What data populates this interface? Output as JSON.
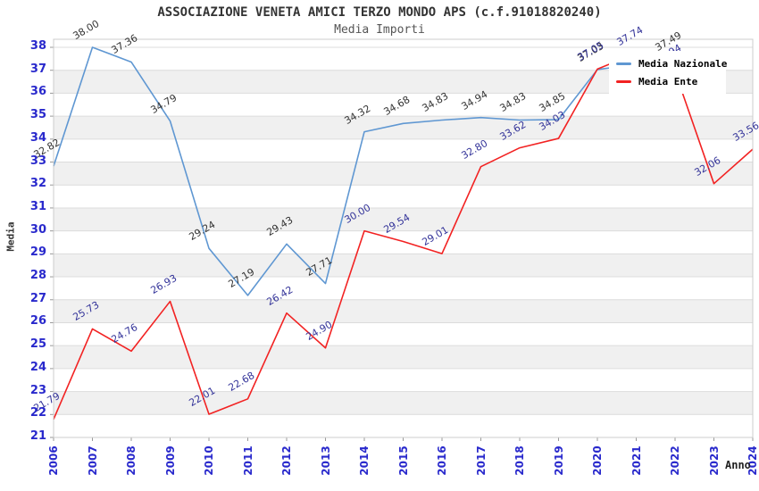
{
  "header": {
    "title": "ASSOCIAZIONE VENETA AMICI TERZO MONDO APS (c.f.91018820240)",
    "subtitle": "Media Importi"
  },
  "axes": {
    "x_label": "Anno",
    "y_label": "Media",
    "y_min": 21,
    "y_max": 38,
    "y_tick_step": 1,
    "tick_label_color": "#2929cc"
  },
  "legend": {
    "position": "top-right",
    "items": [
      {
        "label": "Media Nazionale",
        "color": "#5f97d2"
      },
      {
        "label": "Media Ente",
        "color": "#f22222"
      }
    ]
  },
  "chart_data": {
    "type": "line",
    "title": "ASSOCIAZIONE VENETA AMICI TERZO MONDO APS (c.f.91018820240)",
    "subtitle": "Media Importi",
    "xlabel": "Anno",
    "ylabel": "Media",
    "x": [
      2006,
      2007,
      2008,
      2009,
      2010,
      2011,
      2012,
      2013,
      2014,
      2015,
      2016,
      2017,
      2018,
      2019,
      2020,
      2021,
      2022,
      2023,
      2024
    ],
    "ylim": [
      21,
      38
    ],
    "grid": "horizontal-stripes",
    "stripe_color": "#f0f0f0",
    "gridline_color": "#dcdcdc",
    "legend_position": "top-right",
    "series": [
      {
        "name": "Media Nazionale",
        "color": "#5f97d2",
        "label_color": "#333333",
        "values": [
          32.82,
          38.0,
          37.36,
          34.79,
          29.24,
          27.19,
          29.43,
          27.71,
          34.32,
          34.68,
          34.83,
          34.94,
          34.83,
          34.85,
          37.03,
          null,
          37.49,
          null,
          null
        ]
      },
      {
        "name": "Media Ente",
        "color": "#f22222",
        "label_color": "#333399",
        "values": [
          21.79,
          25.73,
          24.76,
          26.93,
          22.01,
          22.68,
          26.42,
          24.9,
          30.0,
          29.54,
          29.01,
          32.8,
          33.62,
          34.03,
          37.05,
          37.74,
          36.94,
          32.06,
          33.56
        ]
      }
    ]
  }
}
